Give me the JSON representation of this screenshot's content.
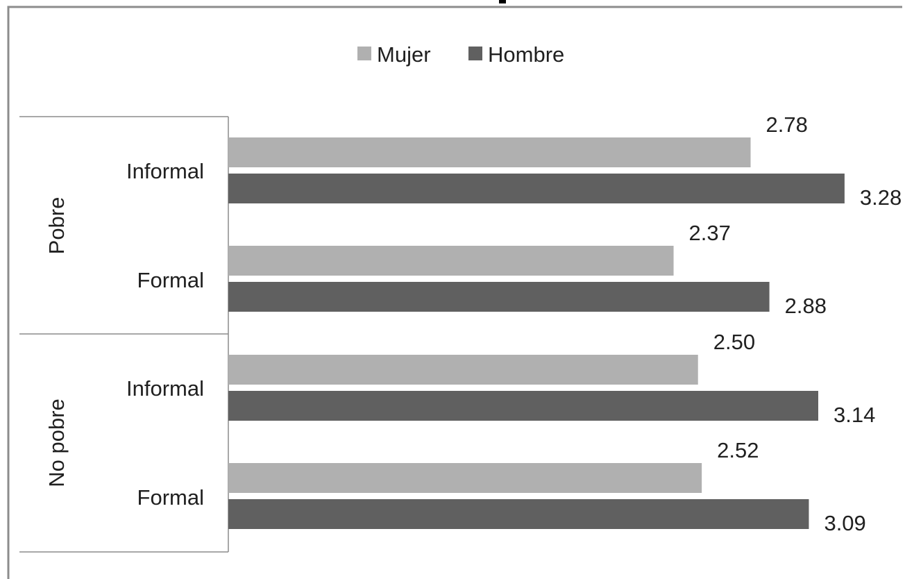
{
  "chart_data": {
    "type": "bar",
    "orientation": "horizontal",
    "title": "",
    "xlabel": "",
    "ylabel": "",
    "legend": {
      "placement": "top-center",
      "entries": [
        "Mujer",
        "Hombre"
      ]
    },
    "groups": [
      {
        "label": "Pobre",
        "categories": [
          "Informal",
          "Formal"
        ]
      },
      {
        "label": "No pobre",
        "categories": [
          "Informal",
          "Formal"
        ]
      }
    ],
    "categories": [
      "Pobre Informal",
      "Pobre Formal",
      "No pobre Informal",
      "No pobre Formal"
    ],
    "series": [
      {
        "name": "Mujer",
        "color": "#b0b0b0",
        "values": [
          2.78,
          2.37,
          2.5,
          2.52
        ],
        "labels": [
          "2.78",
          "2.37",
          "2.50",
          "2.52"
        ]
      },
      {
        "name": "Hombre",
        "color": "#606060",
        "values": [
          3.28,
          2.88,
          3.14,
          3.09
        ],
        "labels": [
          "3.28",
          "2.88",
          "3.14",
          "3.09"
        ]
      }
    ],
    "xlim": [
      0,
      3.5
    ],
    "grid": false
  }
}
